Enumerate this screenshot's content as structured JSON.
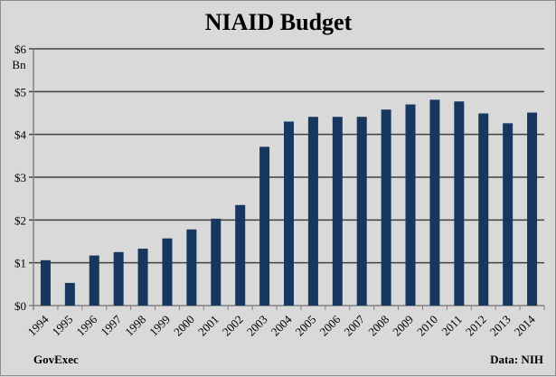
{
  "chart_data": {
    "type": "bar",
    "title": "NIAID Budget",
    "ylabel": "Bn",
    "xlabel": "",
    "categories": [
      "1994",
      "1995",
      "1996",
      "1997",
      "1998",
      "1999",
      "2000",
      "2001",
      "2002",
      "2003",
      "2004",
      "2005",
      "2006",
      "2007",
      "2008",
      "2009",
      "2010",
      "2011",
      "2012",
      "2013",
      "2014"
    ],
    "values": [
      1.06,
      0.53,
      1.17,
      1.25,
      1.33,
      1.57,
      1.78,
      2.03,
      2.35,
      3.71,
      4.3,
      4.41,
      4.41,
      4.41,
      4.58,
      4.7,
      4.81,
      4.77,
      4.49,
      4.26,
      4.51
    ],
    "ylim": [
      0,
      6
    ],
    "yticks": [
      "$0",
      "$1",
      "$2",
      "$3",
      "$4",
      "$5",
      "$6"
    ],
    "grid": true,
    "bar_color": "#17375e",
    "source_left": "GovExec",
    "source_right": "Data: NIH"
  }
}
